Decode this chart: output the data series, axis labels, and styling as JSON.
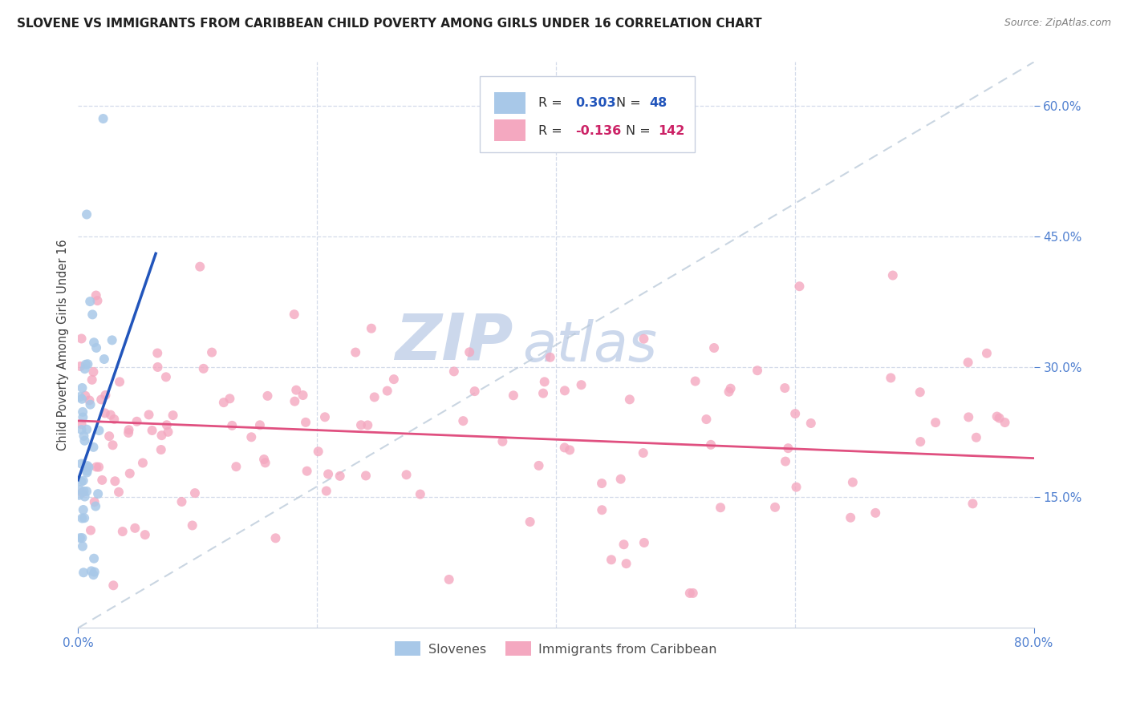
{
  "title": "SLOVENE VS IMMIGRANTS FROM CARIBBEAN CHILD POVERTY AMONG GIRLS UNDER 16 CORRELATION CHART",
  "source": "Source: ZipAtlas.com",
  "ylabel_label": "Child Poverty Among Girls Under 16",
  "xlim": [
    0.0,
    0.8
  ],
  "ylim": [
    0.0,
    0.65
  ],
  "r_slovene": 0.303,
  "n_slovene": 48,
  "r_carib": -0.136,
  "n_carib": 142,
  "slovene_color": "#a8c8e8",
  "carib_color": "#f4a8c0",
  "trend_slovene_color": "#2255bb",
  "trend_carib_color": "#e05080",
  "diagonal_color": "#b8c8d8",
  "watermark_zip": "ZIP",
  "watermark_atlas": "atlas",
  "watermark_color": "#ccd8ec",
  "background_color": "#ffffff",
  "grid_color": "#d0d8e8",
  "tick_color": "#5080d0",
  "ylabel_color": "#404040",
  "title_color": "#202020",
  "source_color": "#808080",
  "legend_r_color_slovene": "#2255bb",
  "legend_r_color_carib": "#cc2266",
  "legend_n_color": "#2255bb",
  "legend_n_color_carib": "#cc2266",
  "legend_border_color": "#c8d0e0"
}
